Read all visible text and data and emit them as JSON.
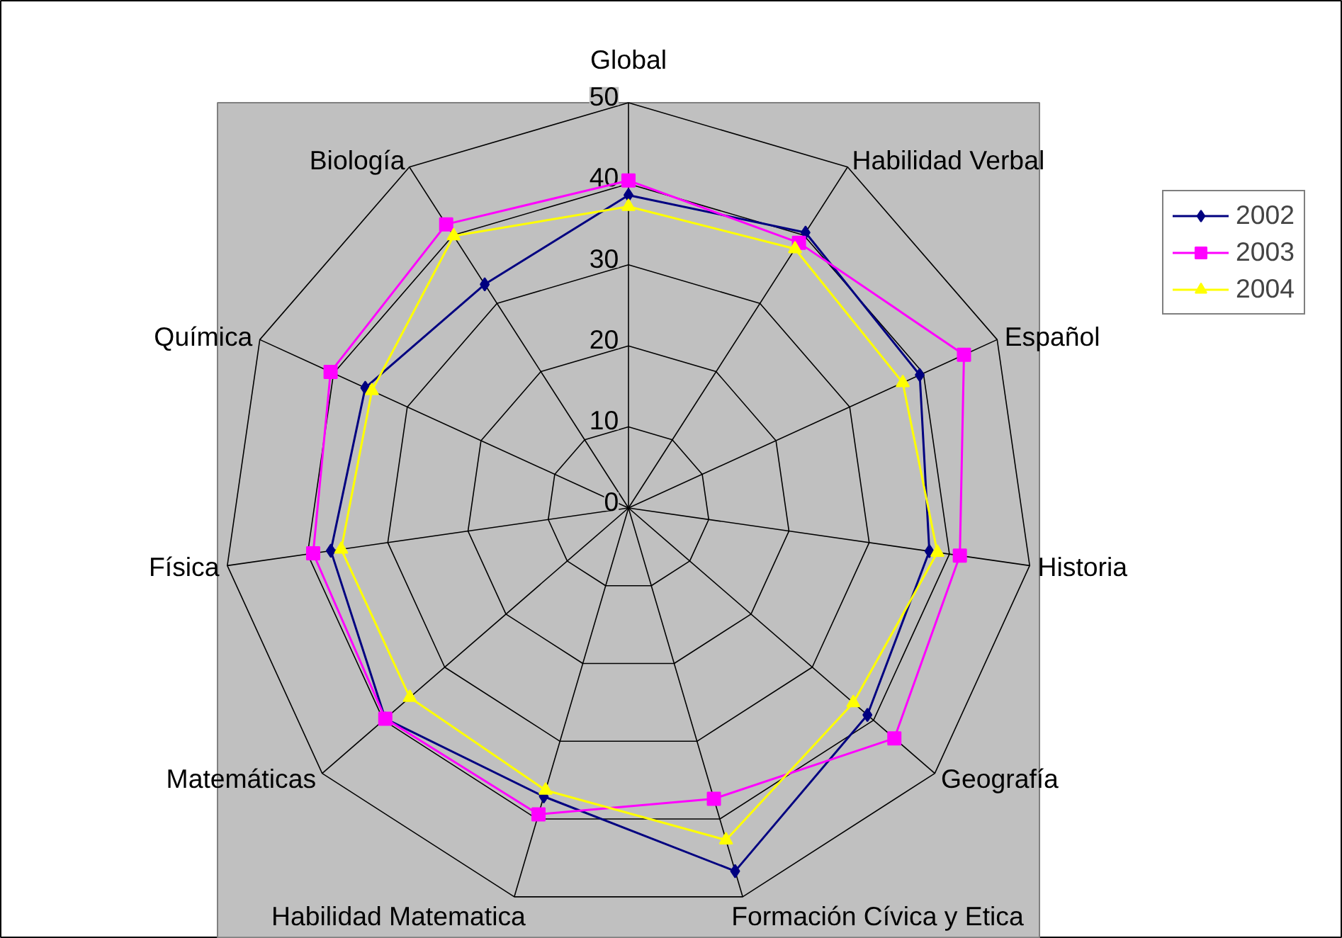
{
  "chart_data": {
    "type": "radar",
    "categories": [
      "Global",
      "Habilidad Verbal",
      "Español",
      "Historia",
      "Geografía",
      "Formación Cívica y Etica",
      "Habilidad Matematica",
      "Matemáticas",
      "Física",
      "Química",
      "Biología"
    ],
    "ylim": [
      0,
      50
    ],
    "yticks": [
      0,
      10,
      20,
      30,
      40,
      50
    ],
    "grid": true,
    "legend": "right",
    "series": [
      {
        "name": "2002",
        "color": "#000080",
        "marker": "diamond",
        "values": [
          38.6,
          40.4,
          39.5,
          37.5,
          39,
          46.7,
          37.1,
          39.7,
          37.1,
          35.7,
          32.8
        ]
      },
      {
        "name": "2003",
        "color": "#ff00ff",
        "marker": "square",
        "values": [
          40.4,
          38.9,
          45.5,
          41.3,
          43.4,
          37.4,
          39.4,
          39.7,
          39.3,
          40.4,
          41.6
        ]
      },
      {
        "name": "2004",
        "color": "#ffff00",
        "marker": "triangle",
        "values": [
          37.2,
          38,
          37.2,
          38.5,
          36.7,
          42.7,
          36.3,
          35.7,
          35.8,
          34.8,
          39.9
        ]
      }
    ]
  }
}
